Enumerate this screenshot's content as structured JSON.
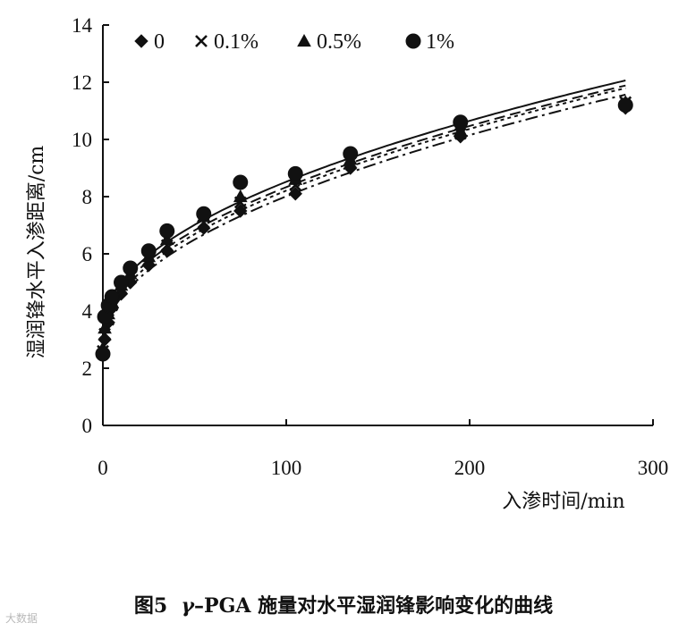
{
  "caption": {
    "figure_no": "图5",
    "greek": "γ",
    "rest": "–PGA 施量对水平湿润锋影响变化的曲线"
  },
  "watermark": "大数据",
  "chart_data": {
    "type": "scatter",
    "xlabel": "入渗时间/min",
    "ylabel": "湿润锋水平入渗距离/cm",
    "xlim": [
      0,
      300
    ],
    "ylim": [
      0,
      14
    ],
    "xticks": [
      "0",
      "100",
      "200",
      "300"
    ],
    "yticks": [
      "0",
      "2",
      "4",
      "6",
      "8",
      "10",
      "12",
      "14"
    ],
    "legend_position": "top-left",
    "grid": false,
    "fit_curves": true,
    "x": [
      0,
      1,
      3,
      5,
      10,
      15,
      25,
      35,
      55,
      75,
      105,
      135,
      195,
      285
    ],
    "series": [
      {
        "name": "0",
        "marker": "diamond",
        "line": "dash-dot",
        "values": [
          2.5,
          3.0,
          3.6,
          4.1,
          4.6,
          5.0,
          5.6,
          6.1,
          6.9,
          7.5,
          8.1,
          9.0,
          10.1,
          11.1
        ]
      },
      {
        "name": "0.1%",
        "marker": "cross",
        "line": "dotted",
        "values": [
          2.6,
          3.2,
          3.7,
          4.2,
          4.8,
          5.2,
          5.8,
          6.3,
          7.1,
          7.8,
          8.4,
          9.2,
          10.2,
          11.3
        ]
      },
      {
        "name": "0.5%",
        "marker": "triangle",
        "line": "dashed",
        "values": [
          2.7,
          3.4,
          3.9,
          4.3,
          4.9,
          5.3,
          5.9,
          6.5,
          7.3,
          8.0,
          8.6,
          9.3,
          10.3,
          11.3
        ]
      },
      {
        "name": "1%",
        "marker": "circle",
        "line": "solid",
        "values": [
          2.5,
          3.8,
          4.2,
          4.5,
          5.0,
          5.5,
          6.1,
          6.8,
          7.4,
          8.5,
          8.8,
          9.5,
          10.6,
          11.2
        ]
      }
    ]
  }
}
